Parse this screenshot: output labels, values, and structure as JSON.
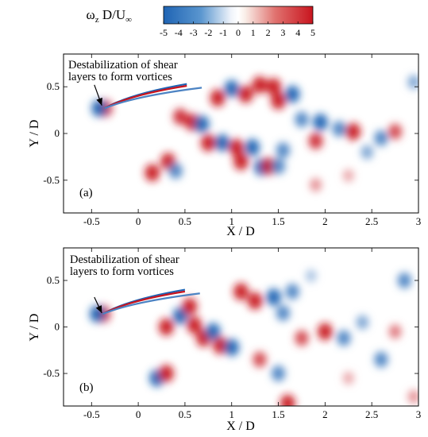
{
  "colorbar": {
    "title_main": "ω",
    "title_sub": "z",
    "title_rest": " D/U",
    "title_inf": "∞",
    "min": -5,
    "max": 5,
    "tick_values": [
      -5,
      -4,
      -3,
      -2,
      -1,
      0,
      1,
      2,
      3,
      4,
      5
    ],
    "tick_labels": [
      "-5",
      "-4",
      "-3",
      "-2",
      "-1",
      "0",
      "1",
      "2",
      "3",
      "4",
      "5"
    ],
    "colors": {
      "negative": "#1f64b4",
      "neutral": "#ffffff",
      "positive": "#c8141e"
    }
  },
  "chart_data": [
    {
      "type": "heatmap",
      "panel_label": "(a)",
      "xlabel": "X / D",
      "ylabel": "Y / D",
      "xlim": [
        -0.8,
        3.0
      ],
      "ylim": [
        -0.85,
        0.85
      ],
      "xticks": [
        -0.5,
        0,
        0.5,
        1,
        1.5,
        2,
        2.5,
        3
      ],
      "xtick_labels": [
        "-0.5",
        "0",
        "0.5",
        "1",
        "1.5",
        "2",
        "2.5",
        "3"
      ],
      "yticks": [
        -0.5,
        0,
        0.5
      ],
      "ytick_labels": [
        "-0.5",
        "0",
        "0.5"
      ],
      "annotation": {
        "lines": [
          "Destabilization of shear",
          "layers to form vortices"
        ],
        "arrow_from": [
          -0.47,
          0.52
        ],
        "arrow_to": [
          -0.39,
          0.3
        ]
      },
      "vortices": [
        {
          "x": -0.36,
          "y": 0.27,
          "w": 5
        },
        {
          "x": -0.42,
          "y": 0.27,
          "w": -5
        },
        {
          "x": 0.45,
          "y": 0.18,
          "w": 4.5
        },
        {
          "x": 0.58,
          "y": 0.12,
          "w": 5
        },
        {
          "x": 0.68,
          "y": 0.1,
          "w": -5
        },
        {
          "x": 0.75,
          "y": -0.1,
          "w": 5
        },
        {
          "x": 0.9,
          "y": -0.1,
          "w": -5
        },
        {
          "x": 1.05,
          "y": -0.15,
          "w": 5
        },
        {
          "x": 1.1,
          "y": -0.3,
          "w": 5
        },
        {
          "x": 1.22,
          "y": -0.15,
          "w": -5
        },
        {
          "x": 1.32,
          "y": -0.36,
          "w": -5
        },
        {
          "x": 1.4,
          "y": -0.35,
          "w": 5
        },
        {
          "x": 1.5,
          "y": -0.35,
          "w": -4
        },
        {
          "x": 1.55,
          "y": -0.18,
          "w": -4
        },
        {
          "x": 0.15,
          "y": -0.42,
          "w": 5
        },
        {
          "x": 0.32,
          "y": -0.3,
          "w": 5
        },
        {
          "x": 0.4,
          "y": -0.4,
          "w": -4
        },
        {
          "x": 0.85,
          "y": 0.38,
          "w": 5
        },
        {
          "x": 1.0,
          "y": 0.48,
          "w": -5
        },
        {
          "x": 1.15,
          "y": 0.42,
          "w": 5
        },
        {
          "x": 1.3,
          "y": 0.52,
          "w": 5
        },
        {
          "x": 1.45,
          "y": 0.5,
          "w": 5
        },
        {
          "x": 1.5,
          "y": 0.35,
          "w": 5
        },
        {
          "x": 1.65,
          "y": 0.42,
          "w": -5
        },
        {
          "x": 1.75,
          "y": 0.15,
          "w": -4
        },
        {
          "x": 1.9,
          "y": -0.08,
          "w": 4.5
        },
        {
          "x": 1.95,
          "y": 0.12,
          "w": -5
        },
        {
          "x": 2.15,
          "y": 0.05,
          "w": -4
        },
        {
          "x": 2.3,
          "y": 0.02,
          "w": 5
        },
        {
          "x": 2.45,
          "y": -0.2,
          "w": -3
        },
        {
          "x": 2.6,
          "y": -0.05,
          "w": -4
        },
        {
          "x": 2.75,
          "y": 0.02,
          "w": 4
        },
        {
          "x": 2.95,
          "y": 0.55,
          "w": -3
        },
        {
          "x": 1.9,
          "y": -0.55,
          "w": 2.5
        },
        {
          "x": 2.25,
          "y": -0.45,
          "w": 2
        }
      ]
    },
    {
      "type": "heatmap",
      "panel_label": "(b)",
      "xlabel": "X / D",
      "ylabel": "Y / D",
      "xlim": [
        -0.8,
        3.0
      ],
      "ylim": [
        -0.85,
        0.85
      ],
      "xticks": [
        -0.5,
        0,
        0.5,
        1,
        1.5,
        2,
        2.5,
        3
      ],
      "xtick_labels": [
        "-0.5",
        "0",
        "0.5",
        "1",
        "1.5",
        "2",
        "2.5",
        "3"
      ],
      "yticks": [
        -0.5,
        0,
        0.5
      ],
      "ytick_labels": [
        "-0.5",
        "0",
        "0.5"
      ],
      "annotation": {
        "lines": [
          "Destabilization of shear",
          "layers to form vortices"
        ],
        "arrow_from": [
          -0.47,
          0.32
        ],
        "arrow_to": [
          -0.39,
          0.15
        ]
      },
      "vortices": [
        {
          "x": -0.38,
          "y": 0.14,
          "w": 5
        },
        {
          "x": -0.44,
          "y": 0.14,
          "w": -5
        },
        {
          "x": 0.3,
          "y": 0.0,
          "w": 5
        },
        {
          "x": 0.45,
          "y": 0.12,
          "w": -5
        },
        {
          "x": 0.6,
          "y": 0.02,
          "w": 5
        },
        {
          "x": 0.7,
          "y": -0.12,
          "w": 5
        },
        {
          "x": 0.8,
          "y": -0.05,
          "w": -5
        },
        {
          "x": 0.88,
          "y": -0.2,
          "w": 5
        },
        {
          "x": 1.0,
          "y": -0.22,
          "w": -5
        },
        {
          "x": 0.55,
          "y": 0.22,
          "w": 5
        },
        {
          "x": 0.2,
          "y": -0.55,
          "w": -5
        },
        {
          "x": 0.3,
          "y": -0.5,
          "w": 5
        },
        {
          "x": 1.1,
          "y": 0.38,
          "w": 5
        },
        {
          "x": 1.25,
          "y": 0.28,
          "w": 5
        },
        {
          "x": 1.45,
          "y": 0.32,
          "w": -5
        },
        {
          "x": 1.65,
          "y": 0.38,
          "w": -4
        },
        {
          "x": 1.55,
          "y": 0.15,
          "w": -4
        },
        {
          "x": 1.75,
          "y": -0.12,
          "w": 4
        },
        {
          "x": 2.0,
          "y": -0.05,
          "w": 5
        },
        {
          "x": 1.3,
          "y": -0.35,
          "w": 4
        },
        {
          "x": 1.5,
          "y": -0.5,
          "w": -4
        },
        {
          "x": 1.6,
          "y": -0.82,
          "w": 5
        },
        {
          "x": 2.2,
          "y": -0.12,
          "w": -4
        },
        {
          "x": 2.4,
          "y": 0.05,
          "w": -3
        },
        {
          "x": 2.6,
          "y": -0.35,
          "w": -4
        },
        {
          "x": 2.75,
          "y": -0.05,
          "w": 3
        },
        {
          "x": 2.95,
          "y": -0.75,
          "w": 2.5
        },
        {
          "x": 2.85,
          "y": 0.5,
          "w": -4
        },
        {
          "x": 2.25,
          "y": -0.55,
          "w": 2
        },
        {
          "x": 1.85,
          "y": 0.55,
          "w": -2
        }
      ]
    }
  ]
}
